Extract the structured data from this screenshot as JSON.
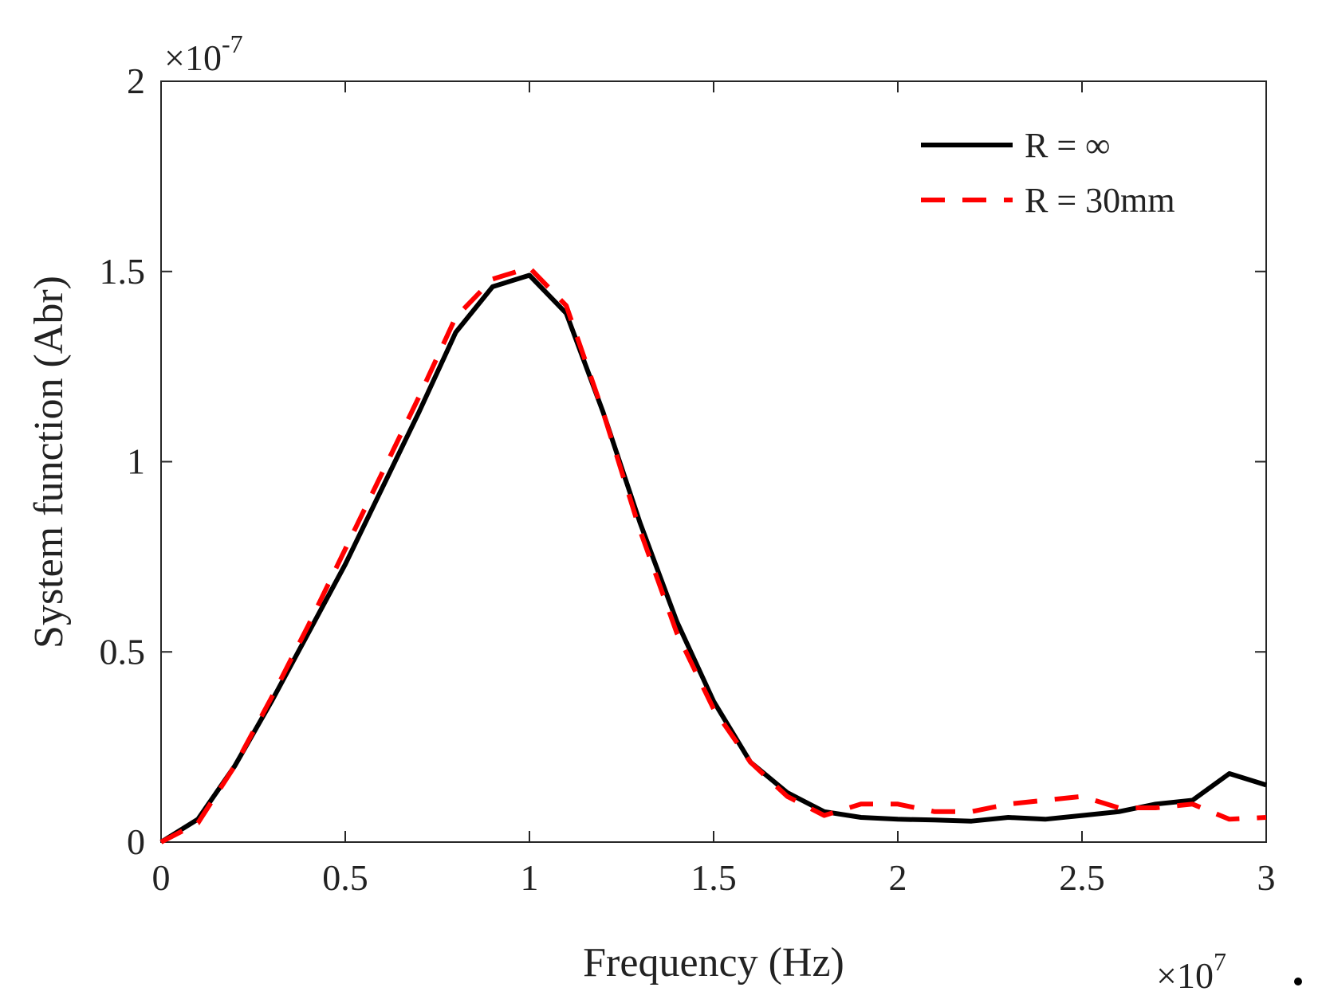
{
  "chart_data": {
    "type": "line",
    "title": "",
    "xlabel": "Frequency (Hz)",
    "ylabel": "System function (Abr)",
    "xlim": [
      0,
      3
    ],
    "ylim": [
      0,
      2
    ],
    "x_multiplier": {
      "base": "×10",
      "exp": "7"
    },
    "y_multiplier": {
      "base": "×10",
      "exp": "-7"
    },
    "x_ticks": [
      0,
      0.5,
      1,
      1.5,
      2,
      2.5,
      3
    ],
    "x_tick_labels": [
      "0",
      "0.5",
      "1",
      "1.5",
      "2",
      "2.5",
      "3"
    ],
    "y_ticks": [
      0,
      0.5,
      1,
      1.5,
      2
    ],
    "y_tick_labels": [
      "0",
      "0.5",
      "1",
      "1.5",
      "2"
    ],
    "grid": false,
    "legend_position": "top-right",
    "x": [
      0,
      0.1,
      0.2,
      0.3,
      0.4,
      0.5,
      0.6,
      0.7,
      0.8,
      0.9,
      1.0,
      1.1,
      1.2,
      1.3,
      1.4,
      1.5,
      1.6,
      1.7,
      1.8,
      1.9,
      2.0,
      2.1,
      2.2,
      2.3,
      2.4,
      2.5,
      2.6,
      2.7,
      2.8,
      2.9,
      3.0
    ],
    "series": [
      {
        "name": "R = ∞",
        "color": "#000000",
        "style": "solid",
        "values": [
          0,
          0.06,
          0.2,
          0.37,
          0.55,
          0.73,
          0.93,
          1.13,
          1.34,
          1.46,
          1.49,
          1.39,
          1.13,
          0.84,
          0.58,
          0.37,
          0.21,
          0.13,
          0.08,
          0.065,
          0.06,
          0.058,
          0.055,
          0.065,
          0.06,
          0.07,
          0.08,
          0.1,
          0.11,
          0.18,
          0.15
        ]
      },
      {
        "name": "R = 30mm",
        "color": "#ff0000",
        "style": "dashed",
        "values": [
          0,
          0.05,
          0.2,
          0.38,
          0.57,
          0.77,
          0.97,
          1.17,
          1.38,
          1.48,
          1.51,
          1.41,
          1.13,
          0.82,
          0.55,
          0.35,
          0.21,
          0.12,
          0.07,
          0.1,
          0.1,
          0.08,
          0.08,
          0.1,
          0.11,
          0.12,
          0.09,
          0.09,
          0.1,
          0.06,
          0.065
        ]
      }
    ]
  }
}
